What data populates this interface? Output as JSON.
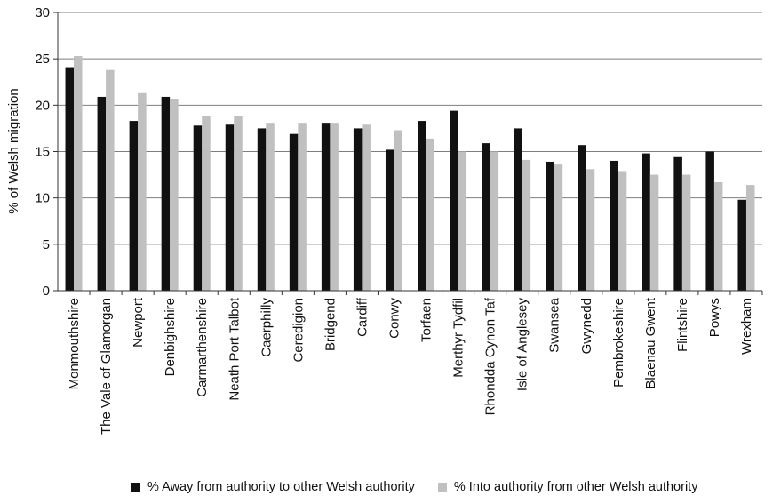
{
  "chart_data": {
    "type": "bar",
    "title": "",
    "xlabel": "",
    "ylabel": "% of Welsh migration",
    "ylim": [
      0,
      30
    ],
    "yticks": [
      "0",
      "5",
      "10",
      "15",
      "20",
      "25",
      "30"
    ],
    "grid": true,
    "legend_position": "bottom",
    "categories": [
      "Monmouthshire",
      "The Vale of Glamorgan",
      "Newport",
      "Denbighshire",
      "Carmarthenshire",
      "Neath Port Talbot",
      "Caerphilly",
      "Ceredigion",
      "Bridgend",
      "Cardiff",
      "Conwy",
      "Torfaen",
      "Merthyr Tydfil",
      "Rhondda Cynon Taf",
      "Isle of Anglesey",
      "Swansea",
      "Gwynedd",
      "Pembrokeshire",
      "Blaenau Gwent",
      "Flintshire",
      "Powys",
      "Wrexham"
    ],
    "series": [
      {
        "name": "% Away from authority to other Welsh authority",
        "color": "#111111",
        "values": [
          24.1,
          20.9,
          18.3,
          20.9,
          17.8,
          17.9,
          17.5,
          16.9,
          18.1,
          17.5,
          15.2,
          18.3,
          19.4,
          15.9,
          17.5,
          13.9,
          15.7,
          14.0,
          14.8,
          14.4,
          15.0,
          9.8
        ]
      },
      {
        "name": "% Into authority from other Welsh authority",
        "color": "#c0c0c0",
        "values": [
          25.3,
          23.8,
          21.3,
          20.7,
          18.8,
          18.8,
          18.1,
          18.1,
          18.1,
          17.9,
          17.3,
          16.4,
          15.0,
          15.0,
          14.1,
          13.6,
          13.1,
          12.9,
          12.5,
          12.5,
          11.7,
          11.4
        ]
      }
    ]
  }
}
